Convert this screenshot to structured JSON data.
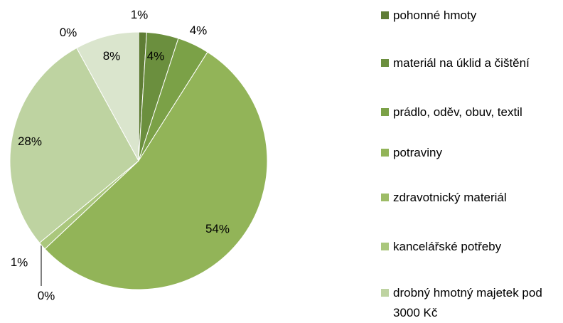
{
  "chart_data": {
    "type": "pie",
    "categories": [
      "pohonné hmoty",
      "materiál na úklid a čištění",
      "prádlo, oděv, obuv, textil",
      "potraviny",
      "zdravotnický materiál",
      "kancelářské potřeby",
      "drobný hmotný majetek pod 3000 Kč",
      null,
      null
    ],
    "values": [
      1,
      4,
      4,
      54,
      0,
      1,
      28,
      8,
      0
    ],
    "colors": [
      "#5f7d35",
      "#6b8f3e",
      "#7ba147",
      "#92b458",
      "#9dbc66",
      "#aac77c",
      "#bed3a1",
      "#dae5cd",
      "#e8eee1"
    ],
    "legend": "right"
  }
}
